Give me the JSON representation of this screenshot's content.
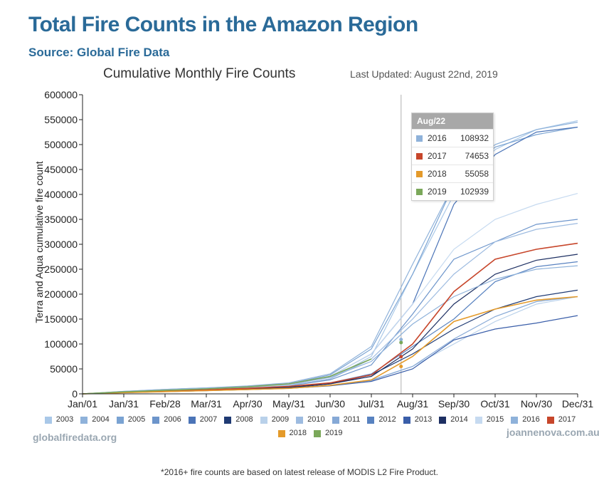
{
  "header": {
    "title": "Total Fire Counts in the Amazon Region",
    "source": "Source: Global Fire Data"
  },
  "branding": {
    "left": "globalfiredata.org",
    "right": "joannenova.com.au"
  },
  "footnote": "*2016+ fire counts are based on latest release of MODIS L2 Fire Product.",
  "tooltip": {
    "date": "Aug/22",
    "rows": [
      {
        "year": "2016",
        "value": "108932",
        "color": "#8fb2da"
      },
      {
        "year": "2017",
        "value": "74653",
        "color": "#c7462b"
      },
      {
        "year": "2018",
        "value": "55058",
        "color": "#e49a2a"
      },
      {
        "year": "2019",
        "value": "102939",
        "color": "#7ba85a"
      }
    ]
  },
  "chart_data": {
    "type": "line",
    "title": "Cumulative Monthly Fire Counts",
    "subtitle": "Last Updated: August 22nd, 2019",
    "xlabel": "",
    "ylabel": "Terra and Aqua cumulative fire count",
    "x_tick_labels": [
      "Jan/01",
      "Jan/31",
      "Feb/28",
      "Mar/31",
      "Apr/30",
      "May/31",
      "Jun/30",
      "Jul/31",
      "Aug/31",
      "Sep/30",
      "Oct/31",
      "Nov/30",
      "Dec/31"
    ],
    "y_ticks": [
      0,
      50000,
      100000,
      150000,
      200000,
      250000,
      300000,
      350000,
      400000,
      450000,
      500000,
      550000,
      600000
    ],
    "ylim": [
      0,
      600000
    ],
    "marker_date_index": 7.72,
    "series": [
      {
        "name": "2003",
        "color": "#a9c8e8",
        "values": [
          0,
          4000,
          7000,
          10000,
          13000,
          17000,
          30000,
          75000,
          240000,
          400000,
          490000,
          530000,
          548000
        ]
      },
      {
        "name": "2004",
        "color": "#8fb2da",
        "values": [
          0,
          5000,
          9000,
          12000,
          16000,
          22000,
          40000,
          95000,
          260000,
          420000,
          500000,
          530000,
          545000
        ]
      },
      {
        "name": "2005",
        "color": "#7aa3d2",
        "values": [
          0,
          4000,
          8000,
          11000,
          15000,
          20000,
          38000,
          90000,
          240000,
          420000,
          495000,
          520000,
          535000
        ]
      },
      {
        "name": "2006",
        "color": "#6d95cb",
        "values": [
          0,
          3500,
          6500,
          9000,
          12000,
          16000,
          28000,
          58000,
          160000,
          270000,
          305000,
          340000,
          350000
        ]
      },
      {
        "name": "2007",
        "color": "#4b74b7",
        "values": [
          0,
          4000,
          7000,
          10000,
          13000,
          18000,
          35000,
          80000,
          180000,
          380000,
          480000,
          525000,
          535000
        ]
      },
      {
        "name": "2008",
        "color": "#1f3a73",
        "values": [
          0,
          3000,
          5000,
          7000,
          9000,
          12000,
          20000,
          38000,
          80000,
          130000,
          170000,
          195000,
          208000
        ]
      },
      {
        "name": "2009",
        "color": "#b9d1ea",
        "values": [
          0,
          2500,
          4500,
          6500,
          8500,
          11000,
          17000,
          28000,
          55000,
          100000,
          145000,
          180000,
          195000
        ]
      },
      {
        "name": "2010",
        "color": "#9dbbe0",
        "values": [
          0,
          4000,
          7000,
          10000,
          13000,
          17000,
          30000,
          70000,
          150000,
          240000,
          305000,
          330000,
          342000
        ]
      },
      {
        "name": "2011",
        "color": "#86a9d6",
        "values": [
          0,
          2500,
          4500,
          6500,
          8500,
          11000,
          17000,
          27000,
          55000,
          110000,
          155000,
          185000,
          195000
        ]
      },
      {
        "name": "2012",
        "color": "#5882c0",
        "values": [
          0,
          3000,
          5500,
          8000,
          10500,
          14000,
          22000,
          40000,
          95000,
          150000,
          225000,
          255000,
          265000
        ]
      },
      {
        "name": "2013",
        "color": "#3a5ea9",
        "values": [
          0,
          2500,
          4500,
          6500,
          8500,
          11000,
          16000,
          25000,
          50000,
          108000,
          130000,
          142000,
          157000
        ]
      },
      {
        "name": "2014",
        "color": "#1d2f62",
        "values": [
          0,
          3000,
          5500,
          7500,
          10000,
          13000,
          20000,
          35000,
          90000,
          180000,
          240000,
          268000,
          280000
        ]
      },
      {
        "name": "2015",
        "color": "#c6daf0",
        "values": [
          0,
          4500,
          8000,
          11000,
          14000,
          18000,
          35000,
          80000,
          180000,
          290000,
          350000,
          380000,
          402000
        ]
      },
      {
        "name": "2016",
        "color": "#8fb2da",
        "values": [
          0,
          5000,
          9000,
          12000,
          15000,
          19000,
          33000,
          65000,
          140000,
          195000,
          230000,
          250000,
          257000
        ]
      },
      {
        "name": "2017",
        "color": "#c7462b",
        "values": [
          0,
          3000,
          5500,
          8000,
          11000,
          15000,
          22000,
          38000,
          100000,
          205000,
          270000,
          290000,
          302000
        ]
      },
      {
        "name": "2018",
        "color": "#e49a2a",
        "values": [
          0,
          2500,
          4500,
          6500,
          8500,
          11000,
          17000,
          28000,
          75000,
          145000,
          170000,
          188000,
          195000
        ]
      },
      {
        "name": "2019",
        "color": "#7ba85a",
        "values": [
          0,
          4000,
          7000,
          10000,
          14000,
          20000,
          35000,
          70000
        ]
      }
    ]
  }
}
